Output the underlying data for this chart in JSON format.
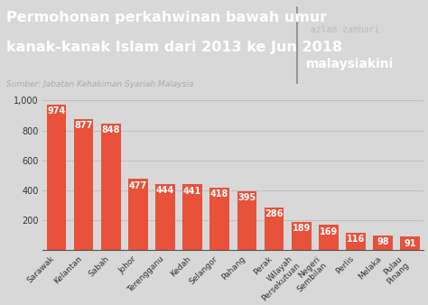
{
  "categories": [
    "Sarawak",
    "Kelantan",
    "Sabah",
    "Johor",
    "Terengganu",
    "Kedah",
    "Selangor",
    "Pahang",
    "Perak",
    "Wilayah\nPersekutuan",
    "Negeri\nSembilan",
    "Perlis",
    "Melaka",
    "Pulau\nPinang"
  ],
  "values": [
    974,
    877,
    848,
    477,
    444,
    441,
    418,
    395,
    286,
    189,
    169,
    116,
    98,
    91
  ],
  "bar_color": "#E8513A",
  "header_bg_color": "#2E2E2E",
  "plot_bg_color": "#D8D8D8",
  "fig_bg_color": "#D8D8D8",
  "title_line1": "Permohonan perkahwinan bawah umur",
  "title_line2": "kanak-kanak Islam dari 2013 ke Jun 2018",
  "subtitle": "Sumber: Jabatan Kehakiman Syariah Malaysia",
  "brand_line1": "azlan zamhari",
  "brand_line2": "malaysiakini",
  "title_color": "#FFFFFF",
  "subtitle_color": "#AAAAAA",
  "brand_color1": "#BBBBBB",
  "brand_color2": "#FFFFFF",
  "divider_color": "#888888",
  "ylim": [
    0,
    1050
  ],
  "yticks": [
    200,
    400,
    600,
    800,
    1000
  ],
  "ytick_labels": [
    "200",
    "400",
    "600",
    "800",
    "1,000"
  ],
  "value_label_color": "#FFFFFF",
  "value_label_fontsize": 7.0,
  "tick_label_fontsize": 6.5,
  "title_fontsize1": 11.5,
  "subtitle_fontsize": 6.5,
  "brand_fontsize1": 7.0,
  "brand_fontsize2": 10.0,
  "axis_label_color": "#333333",
  "grid_color": "#BBBBBB",
  "spine_color": "#555555"
}
